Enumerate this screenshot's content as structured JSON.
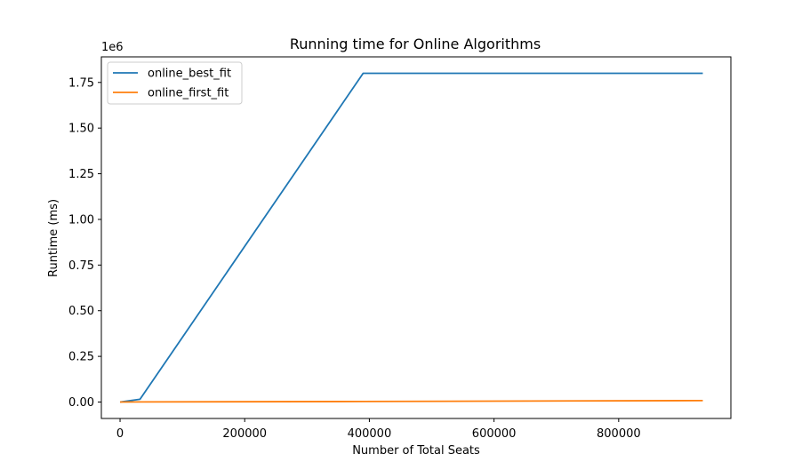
{
  "chart_data": {
    "type": "line",
    "title": "Running time for Online Algorithms",
    "xlabel": "Number of Total Seats",
    "ylabel": "Runtime (ms)",
    "y_offset_label": "1e6",
    "y_scale": 1000000,
    "xlim": [
      -30000,
      980000
    ],
    "ylim": [
      -90000,
      1890000
    ],
    "x_ticks": [
      0,
      200000,
      400000,
      600000,
      800000
    ],
    "x_tick_labels": [
      "0",
      "200000",
      "400000",
      "600000",
      "800000"
    ],
    "y_ticks": [
      0,
      250000,
      500000,
      750000,
      1000000,
      1250000,
      1500000,
      1750000
    ],
    "y_tick_labels": [
      "0.00",
      "0.25",
      "0.50",
      "0.75",
      "1.00",
      "1.25",
      "1.50",
      "1.75"
    ],
    "grid": false,
    "legend_position": "top-left",
    "series": [
      {
        "name": "online_best_fit",
        "color": "#1f77b4",
        "x": [
          0,
          32000,
          390000,
          935000
        ],
        "y": [
          0,
          15000,
          1800000,
          1800000
        ]
      },
      {
        "name": "online_first_fit",
        "color": "#ff7f0e",
        "x": [
          0,
          32000,
          390000,
          935000
        ],
        "y": [
          0,
          500,
          3000,
          8000
        ]
      }
    ]
  }
}
